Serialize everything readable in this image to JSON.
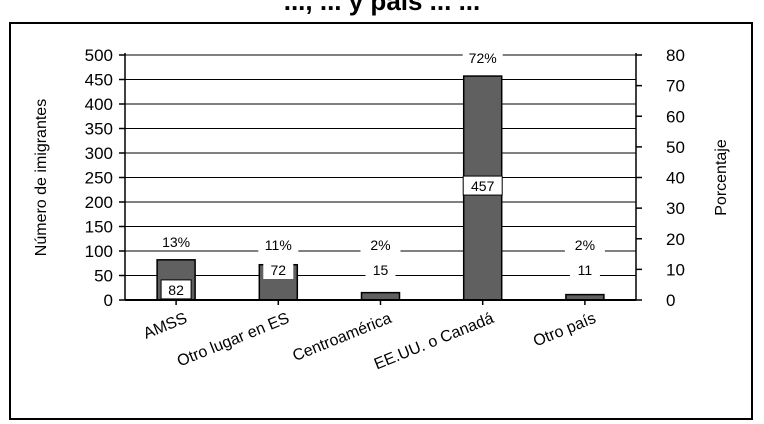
{
  "header": {
    "title": "..., ... y país ... ..."
  },
  "chart_data": {
    "type": "bar",
    "categories": [
      "AMSS",
      "Otro lugar en ES",
      "Centroamérica",
      "EE.UU. o Canadá",
      "Otro país"
    ],
    "values": [
      82,
      72,
      15,
      457,
      11
    ],
    "percentages": [
      "13%",
      "11%",
      "2%",
      "72%",
      "2%"
    ],
    "value_labels": [
      "82",
      "72",
      "15",
      "457",
      "11"
    ],
    "ylabel": "Número de imigrantes",
    "y2label": "Porcentaje",
    "ylim": [
      0,
      500
    ],
    "y2lim": [
      0,
      80
    ],
    "yticks": [
      "0",
      "50",
      "100",
      "150",
      "200",
      "250",
      "300",
      "350",
      "400",
      "450",
      "500"
    ],
    "y2ticks": [
      "0",
      "10",
      "20",
      "30",
      "40",
      "50",
      "60",
      "70",
      "80"
    ],
    "grid": true,
    "colors": {
      "bar": "#606060",
      "bar_stroke": "#000000",
      "label_bg": "#ffffff"
    }
  }
}
